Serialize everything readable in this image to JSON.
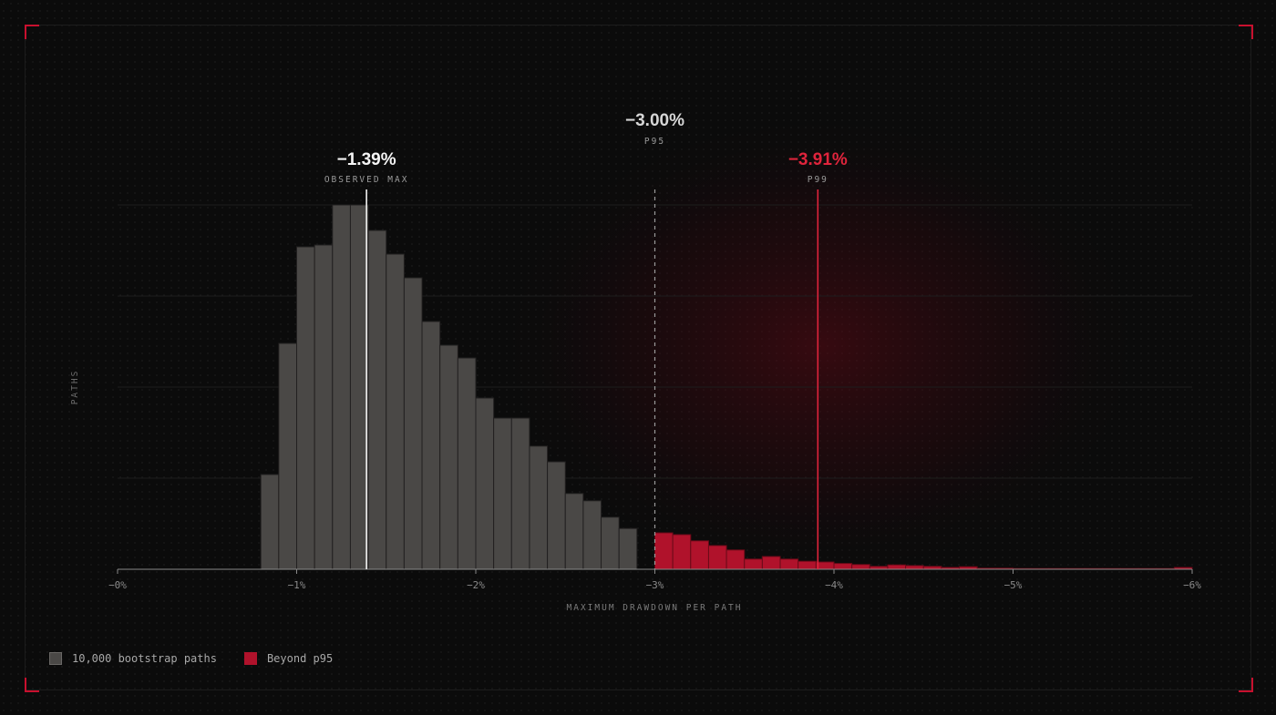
{
  "colors": {
    "background": "#0b0b0b",
    "bar_base": "#4a4846",
    "bar_tail": "#b0122b",
    "accent_red": "#e0243c",
    "observed_line": "#f2f2f2",
    "p95_line": "#9a9a9a"
  },
  "chart_data": {
    "type": "bar",
    "title": "",
    "xlabel": "MAXIMUM DRAWDOWN PER PATH",
    "ylabel": "PATHS",
    "x_ticks": [
      "−0%",
      "−1%",
      "−2%",
      "−3%",
      "−4%",
      "−5%",
      "−6%"
    ],
    "xlim": [
      0,
      6
    ],
    "ylim": [
      0,
      1
    ],
    "bin_width": 0.1,
    "series": [
      {
        "name": "10,000 bootstrap paths",
        "bin_start": [
          0.8,
          0.9,
          1.0,
          1.1,
          1.2,
          1.3,
          1.4,
          1.5,
          1.6,
          1.7,
          1.8,
          1.9,
          2.0,
          2.1,
          2.2,
          2.3,
          2.4,
          2.5,
          2.6,
          2.7,
          2.8
        ],
        "values": [
          0.26,
          0.62,
          0.885,
          0.89,
          1.0,
          1.0,
          0.93,
          0.865,
          0.8,
          0.68,
          0.615,
          0.58,
          0.47,
          0.415,
          0.415,
          0.338,
          0.295,
          0.208,
          0.188,
          0.143,
          0.112
        ]
      },
      {
        "name": "Beyond p95",
        "bin_start": [
          3.0,
          3.1,
          3.2,
          3.3,
          3.4,
          3.5,
          3.6,
          3.7,
          3.8,
          3.9,
          4.0,
          4.1,
          4.2,
          4.3,
          4.4,
          4.5,
          4.6,
          4.7,
          4.8,
          4.9,
          5.0,
          5.1,
          5.2,
          5.3,
          5.4,
          5.5,
          5.6,
          5.7,
          5.8,
          5.9
        ],
        "values": [
          0.1,
          0.095,
          0.078,
          0.065,
          0.053,
          0.028,
          0.035,
          0.028,
          0.022,
          0.02,
          0.016,
          0.013,
          0.008,
          0.012,
          0.01,
          0.008,
          0.005,
          0.007,
          0.003,
          0.003,
          0.002,
          0.002,
          0.002,
          0.002,
          0.002,
          0.002,
          0.002,
          0.002,
          0.002,
          0.005
        ]
      }
    ],
    "markers": [
      {
        "id": "observed",
        "x": 1.39,
        "value": "−1.39%",
        "label": "OBSERVED MAX"
      },
      {
        "id": "p95",
        "x": 3.0,
        "value": "−3.00%",
        "label": "P95"
      },
      {
        "id": "p99",
        "x": 3.91,
        "value": "−3.91%",
        "label": "P99"
      }
    ]
  },
  "legend": {
    "base_label": "10,000 bootstrap paths",
    "tail_label": "Beyond p95"
  }
}
